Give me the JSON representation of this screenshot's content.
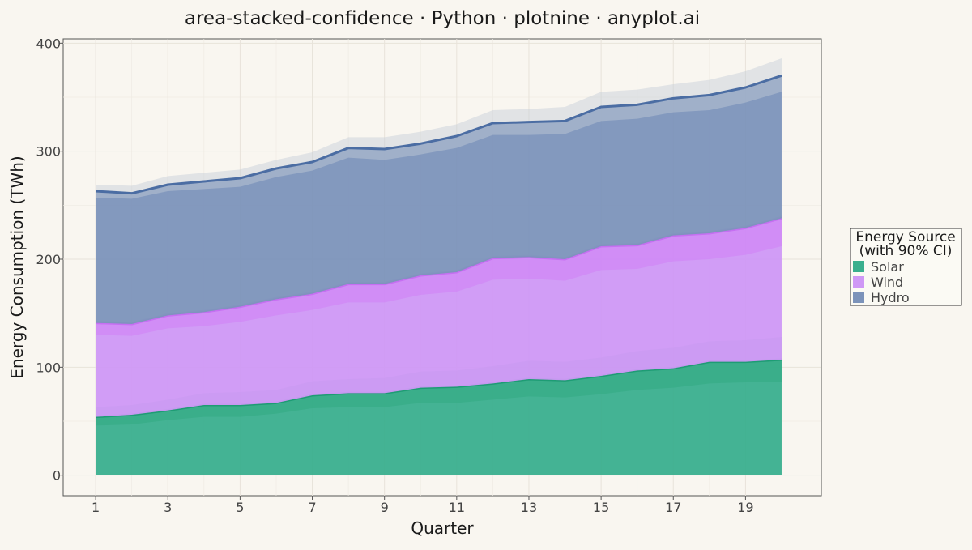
{
  "chart_data": {
    "type": "area",
    "title": "area-stacked-confidence · Python · plotnine · anyplot.ai",
    "xlabel": "Quarter",
    "ylabel": "Energy Consumption (TWh)",
    "x": [
      1,
      2,
      3,
      4,
      5,
      6,
      7,
      8,
      9,
      10,
      11,
      12,
      13,
      14,
      15,
      16,
      17,
      18,
      19,
      20
    ],
    "xticks": [
      1,
      3,
      5,
      7,
      9,
      11,
      13,
      15,
      17,
      19
    ],
    "yticks": [
      0,
      100,
      200,
      300,
      400
    ],
    "xlim": [
      0.1,
      21.1
    ],
    "ylim": [
      -19,
      404
    ],
    "grid": true,
    "stacked": true,
    "confidence_level": "90%",
    "legend": {
      "title_line1": "Energy Source",
      "title_line2": "(with 90% CI)",
      "position": "right"
    },
    "series": [
      {
        "name": "Solar",
        "color": "#3AAF8E",
        "line_color": "#1E9C74",
        "band_color": "#2EA87E",
        "values": [
          54,
          56,
          60,
          65,
          65,
          67,
          74,
          76,
          76,
          81,
          82,
          85,
          89,
          88,
          92,
          97,
          99,
          105,
          105,
          107
        ],
        "lower": [
          46,
          47,
          51,
          54,
          54,
          57,
          62,
          63,
          63,
          67,
          67,
          70,
          73,
          72,
          75,
          79,
          81,
          85,
          86,
          86
        ],
        "upper": [
          63,
          65,
          70,
          76,
          77,
          79,
          87,
          89,
          90,
          96,
          97,
          101,
          106,
          105,
          109,
          115,
          118,
          124,
          125,
          128
        ]
      },
      {
        "name": "Wind",
        "color": "#CF98F6",
        "line_color": "#C66FF2",
        "band_color": "#D07AF6",
        "values": [
          141,
          140,
          148,
          151,
          156,
          163,
          168,
          177,
          177,
          185,
          188,
          201,
          202,
          200,
          212,
          213,
          222,
          224,
          229,
          238
        ],
        "lower": [
          130,
          129,
          136,
          138,
          142,
          148,
          153,
          160,
          160,
          167,
          170,
          181,
          182,
          180,
          190,
          191,
          198,
          200,
          204,
          212
        ],
        "upper": [
          143,
          142,
          150,
          153,
          158,
          165,
          170,
          179,
          179,
          187,
          190,
          203,
          204,
          202,
          214,
          215,
          224,
          226,
          231,
          240
        ]
      },
      {
        "name": "Hydro",
        "color": "#7C93BA",
        "line_color": "#4B6DA3",
        "band_color": "#C4CBD8",
        "values": [
          263,
          261,
          269,
          272,
          275,
          284,
          290,
          303,
          302,
          307,
          314,
          326,
          327,
          328,
          341,
          343,
          349,
          352,
          359,
          370
        ],
        "lower": [
          257,
          256,
          263,
          265,
          267,
          276,
          282,
          294,
          292,
          297,
          303,
          315,
          315,
          316,
          328,
          330,
          336,
          338,
          345,
          355
        ],
        "upper": [
          269,
          268,
          277,
          280,
          283,
          292,
          299,
          313,
          313,
          318,
          325,
          338,
          339,
          341,
          355,
          357,
          362,
          366,
          374,
          386
        ]
      }
    ]
  }
}
